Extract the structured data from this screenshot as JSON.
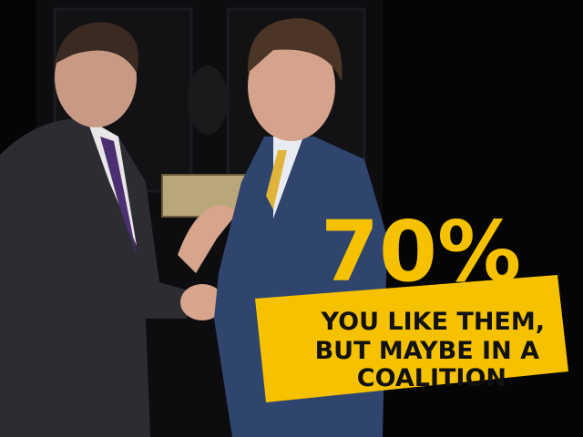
{
  "headline": "70%",
  "caption": [
    "YOU LIKE THEM,",
    "BUT MAYBE IN A",
    "COALITION"
  ]
}
